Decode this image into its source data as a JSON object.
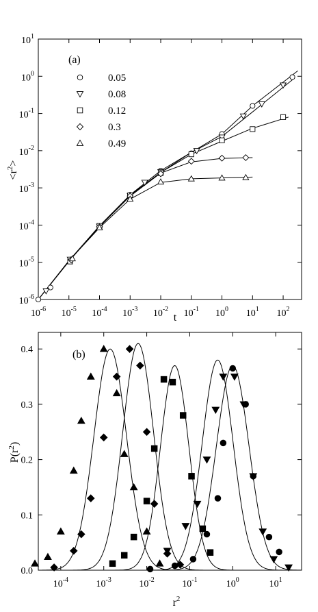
{
  "panels": [
    {
      "label": "(a)",
      "ylabel_base": "<r",
      "ylabel_exp": "2",
      "ylabel_close": ">",
      "xlabel": "t"
    },
    {
      "label": "(b)",
      "ylabel_base": "P(r",
      "ylabel_exp": "2",
      "ylabel_close": ")",
      "xlabel_base": "r",
      "xlabel_exp": "2"
    }
  ],
  "chart_data": [
    {
      "type": "line",
      "title": "(a)",
      "xlabel": "t",
      "ylabel": "<r^2>",
      "xscale": "log",
      "yscale": "log",
      "xlim": [
        1e-06,
        400
      ],
      "ylim": [
        1e-06,
        10
      ],
      "legend_position": "top-left",
      "x_ticks": [
        -6,
        -5,
        -4,
        -3,
        -2,
        -1,
        0,
        1,
        2
      ],
      "y_ticks": [
        -6,
        -5,
        -4,
        -3,
        -2,
        -1,
        0,
        1
      ],
      "series": [
        {
          "name": "0.05",
          "marker": "circle",
          "curve": [
            [
              1e-06,
              1e-06
            ],
            [
              1e-05,
              1.1e-05
            ],
            [
              0.0001,
              9.5e-05
            ],
            [
              0.001,
              0.00065
            ],
            [
              0.01,
              0.0029
            ],
            [
              0.1,
              0.009
            ],
            [
              1,
              0.028
            ],
            [
              10,
              0.16
            ],
            [
              300,
              1.4
            ]
          ],
          "points": [
            [
              1e-06,
              1e-06
            ],
            [
              2.5e-06,
              2.1e-06
            ],
            [
              1.2e-05,
              1.2e-05
            ],
            [
              0.0001,
              9e-05
            ],
            [
              0.001,
              0.00065
            ],
            [
              0.01,
              0.0029
            ],
            [
              0.1,
              0.0085
            ],
            [
              1,
              0.028
            ],
            [
              10,
              0.16
            ],
            [
              200,
              0.95
            ]
          ]
        },
        {
          "name": "0.08",
          "marker": "triangle-down",
          "curve": [
            [
              1e-06,
              1e-06
            ],
            [
              1e-05,
              1.1e-05
            ],
            [
              0.0001,
              9.5e-05
            ],
            [
              0.001,
              0.00063
            ],
            [
              0.01,
              0.0026
            ],
            [
              0.1,
              0.009
            ],
            [
              1,
              0.024
            ],
            [
              10,
              0.11
            ],
            [
              200,
              0.8
            ]
          ],
          "points": [
            [
              1.8e-06,
              1.7e-06
            ],
            [
              1.1e-05,
              1.2e-05
            ],
            [
              0.0001,
              9.3e-05
            ],
            [
              0.001,
              0.00062
            ],
            [
              0.003,
              0.0014
            ],
            [
              0.01,
              0.0027
            ],
            [
              0.15,
              0.01
            ],
            [
              1,
              0.023
            ],
            [
              5,
              0.085
            ],
            [
              20,
              0.18
            ],
            [
              100,
              0.58
            ]
          ]
        },
        {
          "name": "0.12",
          "marker": "square",
          "curve": [
            [
              1e-06,
              1e-06
            ],
            [
              1e-05,
              1.05e-05
            ],
            [
              0.0001,
              9.5e-05
            ],
            [
              0.001,
              0.00063
            ],
            [
              0.01,
              0.0026
            ],
            [
              0.1,
              0.008
            ],
            [
              1,
              0.018
            ],
            [
              10,
              0.04
            ],
            [
              150,
              0.08
            ]
          ],
          "points": [
            [
              1.1e-05,
              1.05e-05
            ],
            [
              0.0001,
              9.5e-05
            ],
            [
              0.001,
              0.00063
            ],
            [
              0.01,
              0.0025
            ],
            [
              0.1,
              0.008
            ],
            [
              1,
              0.019
            ],
            [
              10,
              0.038
            ],
            [
              100,
              0.08
            ]
          ]
        },
        {
          "name": "0.3",
          "marker": "diamond",
          "curve": [
            [
              1e-06,
              1e-06
            ],
            [
              1e-05,
              1.1e-05
            ],
            [
              0.0001,
              9e-05
            ],
            [
              0.001,
              0.0006
            ],
            [
              0.01,
              0.0025
            ],
            [
              0.1,
              0.005
            ],
            [
              1,
              0.0062
            ],
            [
              10,
              0.0065
            ]
          ],
          "points": [
            [
              1.2e-05,
              1.15e-05
            ],
            [
              0.0001,
              9e-05
            ],
            [
              0.001,
              0.0006
            ],
            [
              0.01,
              0.0024
            ],
            [
              0.1,
              0.0052
            ],
            [
              1,
              0.0063
            ],
            [
              6,
              0.0065
            ]
          ]
        },
        {
          "name": "0.49",
          "marker": "triangle-up",
          "curve": [
            [
              1e-06,
              1e-06
            ],
            [
              1e-05,
              1.1e-05
            ],
            [
              0.0001,
              8.5e-05
            ],
            [
              0.001,
              0.0005
            ],
            [
              0.01,
              0.0014
            ],
            [
              0.1,
              0.00175
            ],
            [
              1,
              0.00185
            ],
            [
              10,
              0.00195
            ]
          ],
          "points": [
            [
              1.3e-05,
              1.25e-05
            ],
            [
              0.0001,
              8.5e-05
            ],
            [
              0.001,
              0.0005
            ],
            [
              0.01,
              0.00145
            ],
            [
              0.1,
              0.00175
            ],
            [
              1,
              0.00185
            ],
            [
              6,
              0.0019
            ]
          ]
        }
      ]
    },
    {
      "type": "line",
      "title": "(b)",
      "xlabel": "r^2",
      "ylabel": "P(r^2)",
      "xscale": "log",
      "yscale": "linear",
      "xlim": [
        3e-05,
        40
      ],
      "ylim": [
        0,
        0.43
      ],
      "x_ticks": [
        -4,
        -3,
        -2,
        -1,
        0,
        1
      ],
      "y_ticks": [
        0.0,
        0.1,
        0.2,
        0.3,
        0.4
      ],
      "y_tick_labels": [
        "0.0",
        "0.1",
        "0.2",
        "0.3",
        "0.4"
      ],
      "series": [
        {
          "name": "0.49",
          "marker": "triangle-up",
          "peak_log": -2.85,
          "width_log": 0.38,
          "amp": 0.4,
          "points": [
            [
              2.5e-05,
              0.012
            ],
            [
              5e-05,
              0.024
            ],
            [
              0.0001,
              0.07
            ],
            [
              0.0002,
              0.18
            ],
            [
              0.0003,
              0.27
            ],
            [
              0.0005,
              0.35
            ],
            [
              0.001,
              0.4
            ],
            [
              0.002,
              0.32
            ],
            [
              0.003,
              0.21
            ],
            [
              0.005,
              0.15
            ],
            [
              0.01,
              0.07
            ],
            [
              0.02,
              0.012
            ]
          ]
        },
        {
          "name": "0.3",
          "marker": "diamond",
          "peak_log": -2.2,
          "width_log": 0.36,
          "amp": 0.41,
          "points": [
            [
              7e-05,
              0.005
            ],
            [
              0.0002,
              0.035
            ],
            [
              0.0003,
              0.065
            ],
            [
              0.0005,
              0.13
            ],
            [
              0.001,
              0.24
            ],
            [
              0.002,
              0.35
            ],
            [
              0.004,
              0.4
            ],
            [
              0.007,
              0.37
            ],
            [
              0.01,
              0.25
            ],
            [
              0.015,
              0.12
            ],
            [
              0.03,
              0.03
            ],
            [
              0.06,
              0.01
            ]
          ]
        },
        {
          "name": "0.12",
          "marker": "square",
          "peak_log": -1.35,
          "width_log": 0.33,
          "amp": 0.37,
          "points": [
            [
              0.0016,
              0.012
            ],
            [
              0.003,
              0.027
            ],
            [
              0.005,
              0.06
            ],
            [
              0.01,
              0.125
            ],
            [
              0.015,
              0.22
            ],
            [
              0.025,
              0.345
            ],
            [
              0.04,
              0.34
            ],
            [
              0.07,
              0.28
            ],
            [
              0.11,
              0.17
            ],
            [
              0.2,
              0.075
            ],
            [
              0.3,
              0.032
            ]
          ]
        },
        {
          "name": "0.08",
          "marker": "triangle-down",
          "peak_log": -0.35,
          "width_log": 0.36,
          "amp": 0.38,
          "points": [
            [
              0.03,
              0.035
            ],
            [
              0.08,
              0.08
            ],
            [
              0.15,
              0.12
            ],
            [
              0.25,
              0.2
            ],
            [
              0.4,
              0.29
            ],
            [
              0.6,
              0.35
            ],
            [
              1.1,
              0.35
            ],
            [
              1.8,
              0.3
            ],
            [
              3,
              0.17
            ],
            [
              5,
              0.07
            ],
            [
              9,
              0.02
            ],
            [
              20,
              0.005
            ]
          ]
        },
        {
          "name": "0.05",
          "marker": "circle",
          "peak_log": 0.0,
          "width_log": 0.38,
          "amp": 0.37,
          "points": [
            [
              0.012,
              0.002
            ],
            [
              0.045,
              0.008
            ],
            [
              0.12,
              0.02
            ],
            [
              0.25,
              0.065
            ],
            [
              0.45,
              0.13
            ],
            [
              0.6,
              0.23
            ],
            [
              1,
              0.365
            ],
            [
              2,
              0.3
            ],
            [
              3,
              0.17
            ],
            [
              7,
              0.06
            ],
            [
              12,
              0.033
            ]
          ]
        }
      ]
    }
  ]
}
